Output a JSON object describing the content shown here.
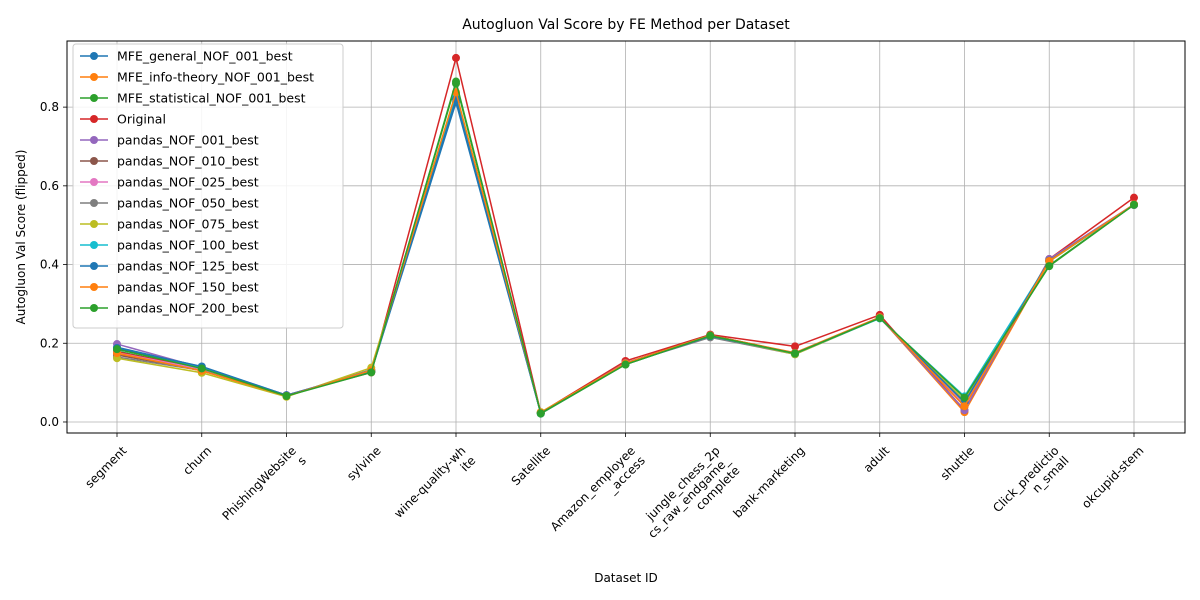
{
  "chart_data": {
    "type": "line",
    "title": "Autogluon Val Score by FE Method per Dataset",
    "xlabel": "Dataset ID",
    "ylabel": "Autogluon Val Score (flipped)",
    "ylim": [
      -0.028,
      0.968
    ],
    "yticks": [
      0.0,
      0.2,
      0.4,
      0.6,
      0.8
    ],
    "ytick_labels": [
      "0.0",
      "0.2",
      "0.4",
      "0.6",
      "0.8"
    ],
    "grid": true,
    "legend_position": "upper-left",
    "categories": [
      "segment",
      "churn",
      "PhishingWebsites",
      "sylvine",
      "wine-quality-white",
      "Satellite",
      "Amazon_employee_access",
      "jungle_chess_2pcs_raw_endgame_complete",
      "bank-marketing",
      "adult",
      "shuttle",
      "Click_prediction_small",
      "okcupid-stem"
    ],
    "category_tick_lines": [
      [
        "segment"
      ],
      [
        "churn"
      ],
      [
        "PhishingWebsite",
        "s"
      ],
      [
        "sylvine"
      ],
      [
        "wine-quality-wh",
        "ite"
      ],
      [
        "Satellite"
      ],
      [
        "Amazon_employee",
        "_access"
      ],
      [
        "jungle_chess_2p",
        "cs_raw_endgame_",
        "complete"
      ],
      [
        "bank-marketing"
      ],
      [
        "adult"
      ],
      [
        "shuttle"
      ],
      [
        "Click_predictio",
        "n_small"
      ],
      [
        "okcupid-stem"
      ]
    ],
    "series": [
      {
        "name": "MFE_general_NOF_001_best",
        "color": "#1f77b4",
        "values": [
          0.19,
          0.14,
          0.068,
          0.128,
          0.812,
          0.022,
          0.148,
          0.218,
          0.175,
          0.265,
          0.048,
          0.41,
          0.552
        ]
      },
      {
        "name": "MFE_info-theory_NOF_001_best",
        "color": "#ff7f0e",
        "values": [
          0.172,
          0.13,
          0.066,
          0.132,
          0.83,
          0.024,
          0.15,
          0.22,
          0.176,
          0.266,
          0.025,
          0.408,
          0.553
        ]
      },
      {
        "name": "MFE_statistical_NOF_001_best",
        "color": "#2ca02c",
        "values": [
          0.18,
          0.135,
          0.067,
          0.127,
          0.86,
          0.021,
          0.146,
          0.219,
          0.174,
          0.265,
          0.055,
          0.398,
          0.552
        ]
      },
      {
        "name": "Original",
        "color": "#d62728",
        "values": [
          0.178,
          0.136,
          0.068,
          0.126,
          0.925,
          0.024,
          0.155,
          0.222,
          0.192,
          0.272,
          0.03,
          0.414,
          0.57
        ]
      },
      {
        "name": "pandas_NOF_001_best",
        "color": "#9467bd",
        "values": [
          0.198,
          0.138,
          0.068,
          0.13,
          0.835,
          0.023,
          0.15,
          0.218,
          0.174,
          0.266,
          0.03,
          0.414,
          0.553
        ]
      },
      {
        "name": "pandas_NOF_010_best",
        "color": "#8c564b",
        "values": [
          0.17,
          0.132,
          0.067,
          0.129,
          0.83,
          0.023,
          0.149,
          0.221,
          0.174,
          0.265,
          0.04,
          0.41,
          0.552
        ]
      },
      {
        "name": "pandas_NOF_025_best",
        "color": "#e377c2",
        "values": [
          0.176,
          0.134,
          0.067,
          0.131,
          0.832,
          0.023,
          0.149,
          0.218,
          0.175,
          0.265,
          0.045,
          0.41,
          0.552
        ]
      },
      {
        "name": "pandas_NOF_050_best",
        "color": "#7f7f7f",
        "values": [
          0.165,
          0.131,
          0.066,
          0.133,
          0.828,
          0.024,
          0.148,
          0.215,
          0.172,
          0.264,
          0.05,
          0.409,
          0.551
        ]
      },
      {
        "name": "pandas_NOF_075_best",
        "color": "#bcbd22",
        "values": [
          0.162,
          0.125,
          0.064,
          0.138,
          0.832,
          0.025,
          0.148,
          0.219,
          0.172,
          0.264,
          0.055,
          0.408,
          0.552
        ]
      },
      {
        "name": "pandas_NOF_100_best",
        "color": "#17becf",
        "values": [
          0.185,
          0.138,
          0.067,
          0.13,
          0.826,
          0.022,
          0.147,
          0.218,
          0.174,
          0.263,
          0.065,
          0.409,
          0.552
        ]
      },
      {
        "name": "pandas_NOF_125_best",
        "color": "#1f77b4",
        "values": [
          0.188,
          0.141,
          0.068,
          0.129,
          0.82,
          0.022,
          0.147,
          0.218,
          0.175,
          0.265,
          0.05,
          0.41,
          0.552
        ]
      },
      {
        "name": "pandas_NOF_150_best",
        "color": "#ff7f0e",
        "values": [
          0.175,
          0.13,
          0.066,
          0.131,
          0.838,
          0.024,
          0.149,
          0.22,
          0.175,
          0.266,
          0.04,
          0.409,
          0.553
        ]
      },
      {
        "name": "pandas_NOF_200_best",
        "color": "#2ca02c",
        "values": [
          0.185,
          0.136,
          0.066,
          0.126,
          0.865,
          0.022,
          0.146,
          0.219,
          0.174,
          0.264,
          0.062,
          0.396,
          0.552
        ]
      }
    ]
  }
}
